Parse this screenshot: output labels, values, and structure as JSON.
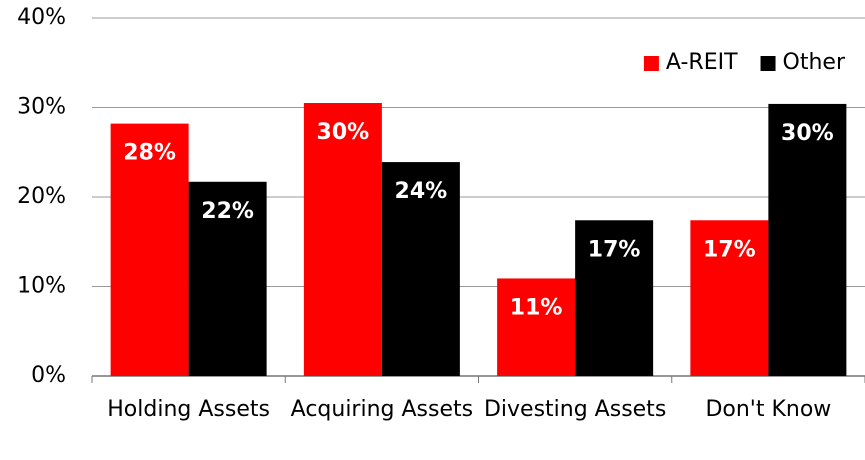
{
  "chart_data": {
    "type": "bar",
    "categories": [
      "Holding Assets",
      "Acquiring Assets",
      "Divesting Assets",
      "Don't Know"
    ],
    "series": [
      {
        "name": "A-REIT",
        "color": "#ff0000",
        "values": [
          28.2,
          30.5,
          10.9,
          17.4
        ],
        "value_labels": [
          "28%",
          "30%",
          "11%",
          "17%"
        ]
      },
      {
        "name": "Other",
        "color": "#000000",
        "values": [
          21.7,
          23.9,
          17.4,
          30.4
        ],
        "value_labels": [
          "22%",
          "24%",
          "17%",
          "30%"
        ]
      }
    ],
    "ylim": [
      0,
      40
    ],
    "yticks": [
      {
        "value": 0,
        "label": "0%"
      },
      {
        "value": 10,
        "label": "10%"
      },
      {
        "value": 20,
        "label": "20%"
      },
      {
        "value": 30,
        "label": "30%"
      },
      {
        "value": 40,
        "label": "40%"
      }
    ],
    "grid": true,
    "legend": "top-right"
  }
}
